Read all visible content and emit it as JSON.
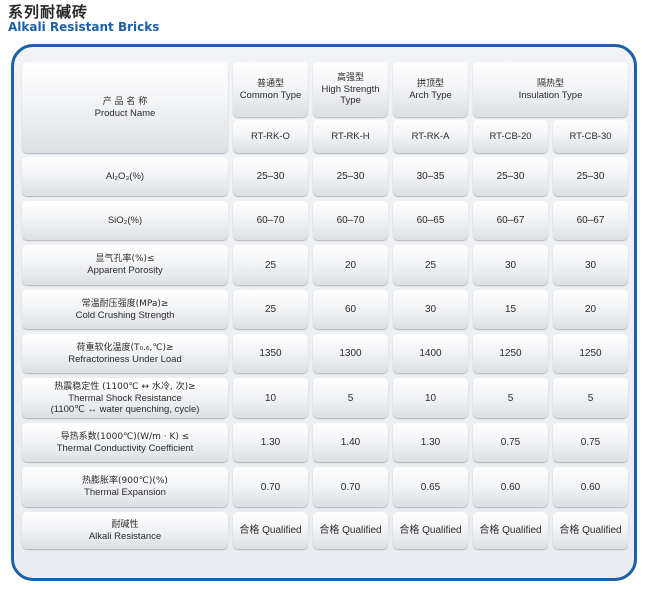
{
  "page": {
    "title_cn": "系列耐碱砖",
    "title_en": "Alkali Resistant Bricks"
  },
  "header": {
    "product": {
      "cn": "产 品 名 称",
      "en": "Product Name"
    },
    "groups": [
      {
        "cn": "普通型",
        "en": "Common Type"
      },
      {
        "cn": "高强型",
        "en": "High Strength Type"
      },
      {
        "cn": "拱顶型",
        "en": "Arch Type"
      },
      {
        "cn": "隔热型",
        "en": "Insulation Type"
      }
    ],
    "codes": [
      "RT-RK-O",
      "RT-RK-H",
      "RT-RK-A",
      "RT-CB-20",
      "RT-CB-30"
    ]
  },
  "rows": [
    {
      "label_cn": "",
      "label_en": "Al₂O₃(%)",
      "label_en2": "",
      "values": [
        "25–30",
        "25–30",
        "30–35",
        "25–30",
        "25–30"
      ]
    },
    {
      "label_cn": "",
      "label_en": "SiO₂(%)",
      "label_en2": "",
      "values": [
        "60–70",
        "60–70",
        "60–65",
        "60–67",
        "60–67"
      ]
    },
    {
      "label_cn": "显气孔率(%)≤",
      "label_en": "Apparent Porosity",
      "label_en2": "",
      "values": [
        "25",
        "20",
        "25",
        "30",
        "30"
      ]
    },
    {
      "label_cn": "常温耐压强度(MPa)≥",
      "label_en": "Cold Crushing Strength",
      "label_en2": "",
      "values": [
        "25",
        "60",
        "30",
        "15",
        "20"
      ]
    },
    {
      "label_cn": "荷重软化温度(T₀.₆,℃)≥",
      "label_en": "Refractoriness Under Load",
      "label_en2": "",
      "values": [
        "1350",
        "1300",
        "1400",
        "1250",
        "1250"
      ]
    },
    {
      "label_cn": "热震稳定性 (1100℃ ↔ 水冷, 次)≥",
      "label_en": "Thermal Shock Resistance",
      "label_en2": "(1100℃ ↔ water quenching, cycle)",
      "values": [
        "10",
        "5",
        "10",
        "5",
        "5"
      ]
    },
    {
      "label_cn": "导热系数(1000℃)(W/m · K) ≤",
      "label_en": "Thermal Conductivity Coefficient",
      "label_en2": "",
      "values": [
        "1.30",
        "1.40",
        "1.30",
        "0.75",
        "0.75"
      ]
    },
    {
      "label_cn": "热膨胀率(900℃)(%)",
      "label_en": "Thermal Expansion",
      "label_en2": "",
      "values": [
        "0.70",
        "0.70",
        "0.65",
        "0.60",
        "0.60"
      ]
    },
    {
      "label_cn": "耐碱性",
      "label_en": "Alkali Resistance",
      "label_en2": "",
      "values": [
        "合格 Qualified",
        "合格 Qualified",
        "合格 Qualified",
        "合格 Qualified",
        "合格 Qualified"
      ]
    }
  ]
}
